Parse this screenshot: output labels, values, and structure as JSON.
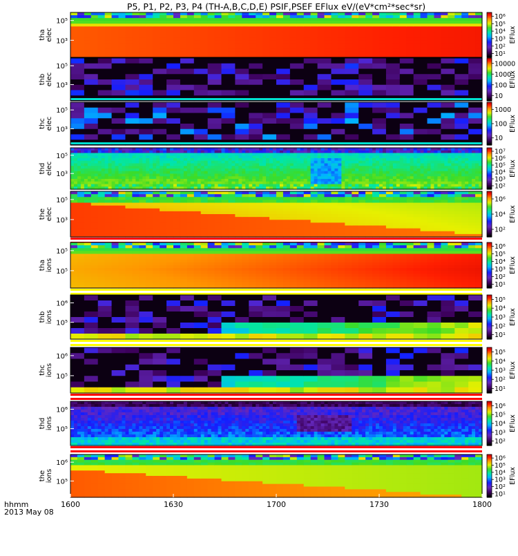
{
  "chart_data": {
    "type": "heatmap",
    "title": "P5, P1, P2, P3, P4  (TH-A,B,C,D,E)  PSIF,PSEF  EFlux  eV/(eV*cm²*sec*sr)",
    "x_ticks": [
      "1600",
      "1630",
      "1700",
      "1730",
      "1800"
    ],
    "x_label_lines": [
      "hhmm",
      "2013 May 08"
    ],
    "colorbar_label": "EFlux",
    "panels": [
      {
        "ylabel": [
          "tha",
          "elec"
        ],
        "yticks": [
          "10⁵",
          "10³"
        ],
        "cbar_ticks": [
          "10⁶",
          "10⁵",
          "10⁴",
          "10³",
          "10²",
          "10¹"
        ],
        "pattern": "hot_smooth",
        "seed": 11,
        "white_top": 0.12
      },
      {
        "ylabel": [
          "thb",
          "elec"
        ],
        "yticks": [
          "10⁵",
          "10³"
        ],
        "cbar_ticks": [
          "10000",
          "1000",
          "100",
          "10"
        ],
        "pattern": "sparse_blocks",
        "seed": 23,
        "bottom_line": "cyan"
      },
      {
        "ylabel": [
          "thc",
          "elec"
        ],
        "yticks": [
          "10⁵",
          "10³"
        ],
        "cbar_ticks": [
          "1000",
          "100",
          "10"
        ],
        "pattern": "sparse_blocks_blue",
        "seed": 37,
        "bottom_line": "cyan"
      },
      {
        "ylabel": [
          "thd",
          "elec"
        ],
        "yticks": [
          "10⁵",
          "10³"
        ],
        "cbar_ticks": [
          "10⁷",
          "10⁶",
          "10⁵",
          "10⁴",
          "10³",
          "10²"
        ],
        "pattern": "green_noise",
        "seed": 41
      },
      {
        "ylabel": [
          "the",
          "elec"
        ],
        "yticks": [
          "10⁵",
          "10³"
        ],
        "cbar_ticks": [
          "10⁶",
          "10⁴",
          "10²"
        ],
        "pattern": "hot_fade",
        "seed": 53,
        "white_top": 0.12,
        "bottom_stripe": "red"
      },
      {
        "ylabel": [
          "tha",
          "ions"
        ],
        "yticks": [
          "10⁵",
          "10⁵"
        ],
        "cbar_ticks": [
          "10⁶",
          "10⁵",
          "10⁴",
          "10³",
          "10²",
          "10¹"
        ],
        "pattern": "hot_smooth_ions",
        "seed": 61,
        "white_top": 0.12,
        "bottom_stripe": "yellow"
      },
      {
        "ylabel": [
          "thb",
          "ions"
        ],
        "yticks": [
          "10⁶",
          "10⁵"
        ],
        "cbar_ticks": [
          "10⁵",
          "10⁴",
          "10³",
          "10²",
          "10¹"
        ],
        "pattern": "sparse_ions",
        "seed": 71,
        "bottom_stripe": "yellow"
      },
      {
        "ylabel": [
          "thc",
          "ions"
        ],
        "yticks": [
          "10⁶",
          "10⁵"
        ],
        "cbar_ticks": [
          "10⁵",
          "10⁴",
          "10³",
          "10²",
          "10¹"
        ],
        "pattern": "sparse_ions",
        "seed": 83,
        "bottom_stripe": "red"
      },
      {
        "ylabel": [
          "thd",
          "ions"
        ],
        "yticks": [
          "10⁶",
          "10⁵"
        ],
        "cbar_ticks": [
          "10⁶",
          "10⁵",
          "10⁴",
          "10³",
          "10²"
        ],
        "pattern": "blue_noise",
        "seed": 97,
        "bottom_stripe": "red"
      },
      {
        "ylabel": [
          "the",
          "ions"
        ],
        "yticks": [
          "10⁶",
          "10⁵"
        ],
        "cbar_ticks": [
          "10⁶",
          "10⁵",
          "10⁴",
          "10³",
          "10²",
          "10¹"
        ],
        "pattern": "hot_fade_ions",
        "seed": 101,
        "white_top": 0.12
      }
    ]
  }
}
